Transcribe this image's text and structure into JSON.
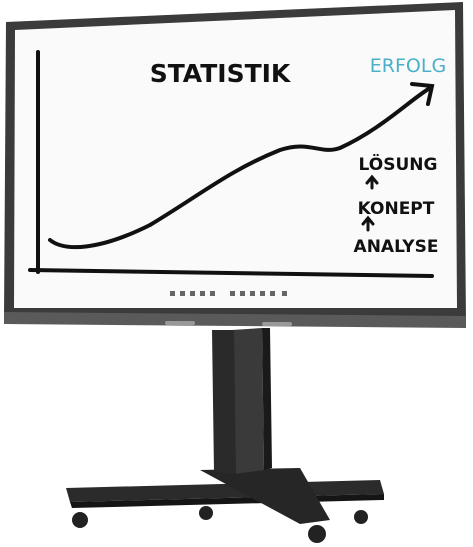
{
  "screen": {
    "title": "STATISTIK",
    "goal": "ERFOLG",
    "steps": [
      "LÖSUNG",
      "KONEPT",
      "ANALYSE"
    ]
  }
}
